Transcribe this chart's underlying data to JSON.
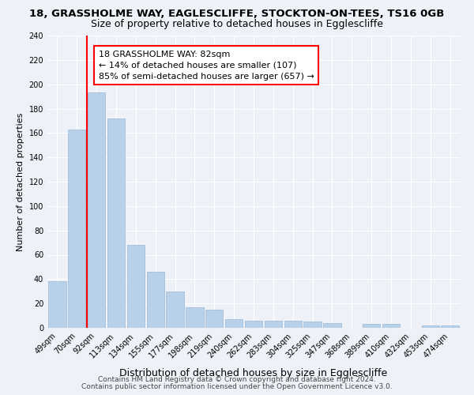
{
  "title": "18, GRASSHOLME WAY, EAGLESCLIFFE, STOCKTON-ON-TEES, TS16 0GB",
  "subtitle": "Size of property relative to detached houses in Egglescliffe",
  "xlabel": "Distribution of detached houses by size in Egglescliffe",
  "ylabel": "Number of detached properties",
  "categories": [
    "49sqm",
    "70sqm",
    "92sqm",
    "113sqm",
    "134sqm",
    "155sqm",
    "177sqm",
    "198sqm",
    "219sqm",
    "240sqm",
    "262sqm",
    "283sqm",
    "304sqm",
    "325sqm",
    "347sqm",
    "368sqm",
    "389sqm",
    "410sqm",
    "432sqm",
    "453sqm",
    "474sqm"
  ],
  "values": [
    38,
    163,
    193,
    172,
    68,
    46,
    30,
    17,
    15,
    7,
    6,
    6,
    6,
    5,
    4,
    0,
    3,
    3,
    0,
    2,
    2
  ],
  "bar_color": "#b8d0e8",
  "bar_edge_color": "#9ab8d8",
  "red_line_x": 1.5,
  "annotation_title": "18 GRASSHOLME WAY: 82sqm",
  "annotation_line1": "← 14% of detached houses are smaller (107)",
  "annotation_line2": "85% of semi-detached houses are larger (657) →",
  "footnote1": "Contains HM Land Registry data © Crown copyright and database right 2024.",
  "footnote2": "Contains public sector information licensed under the Open Government Licence v3.0.",
  "ylim": [
    0,
    240
  ],
  "background_color": "#eef2f8",
  "grid_color": "#ffffff",
  "title_fontsize": 9.5,
  "subtitle_fontsize": 9,
  "xlabel_fontsize": 9,
  "ylabel_fontsize": 8,
  "tick_fontsize": 7,
  "annotation_fontsize": 8,
  "footnote_fontsize": 6.5
}
